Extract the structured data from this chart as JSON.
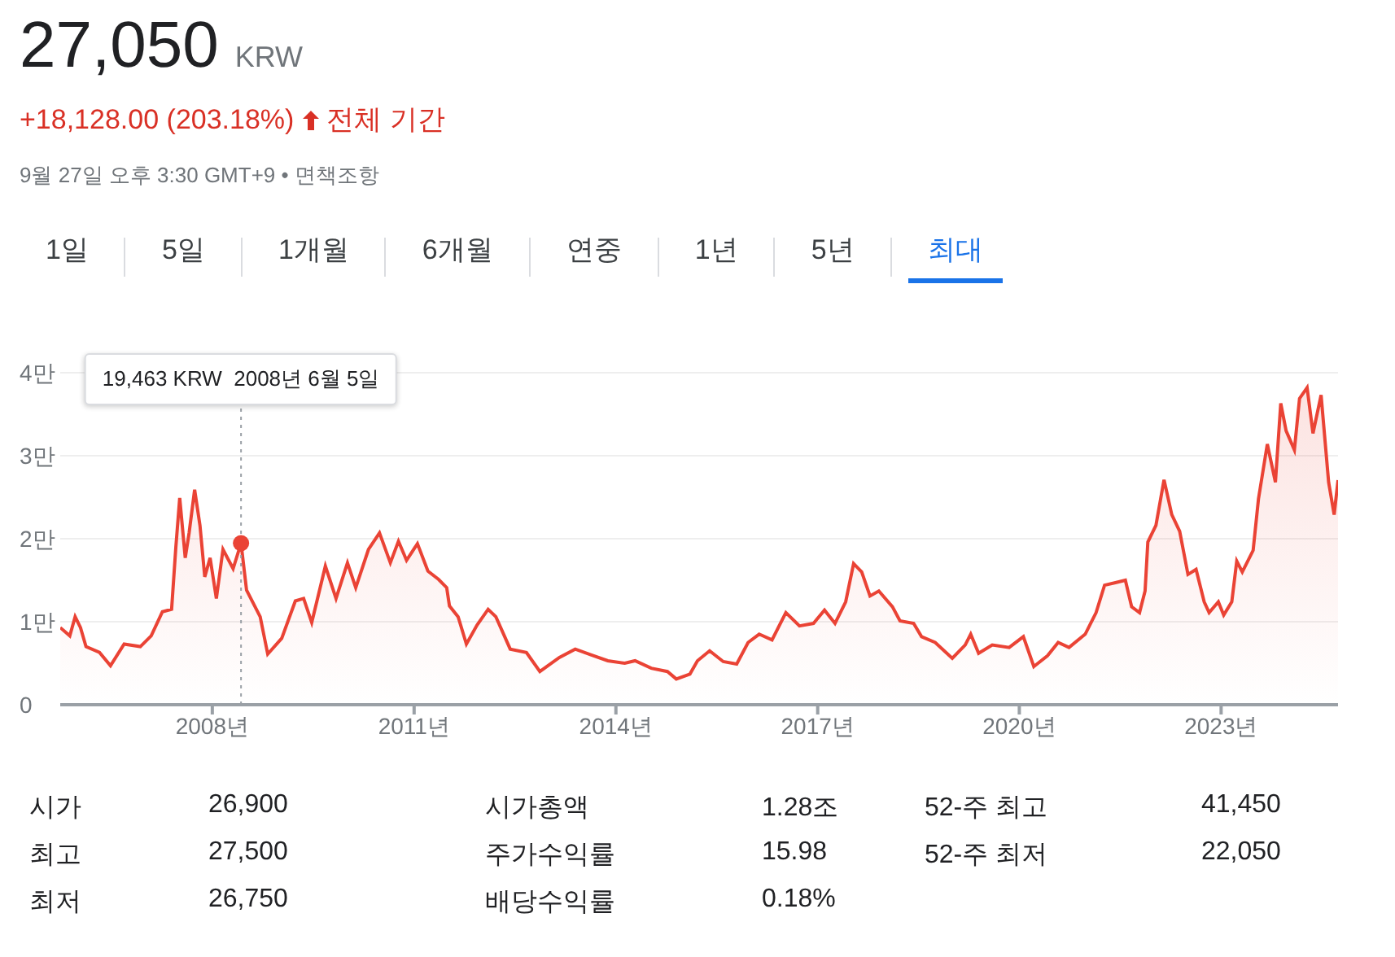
{
  "chart_data": {
    "type": "area",
    "title": "27,050",
    "subtitle": "KRW",
    "annotations": [
      "+18,128.00 (203.18%)",
      "전체 기간",
      "9월 27일 오후 3:30 GMT+9 • 면책조항",
      "1일",
      "5일",
      "1개월",
      "6개월",
      "연중",
      "1년",
      "5년",
      "최대",
      "시가",
      "26,900",
      "최고",
      "27,500",
      "최저",
      "26,750",
      "시가총액",
      "1.28조",
      "주가수익률",
      "15.98",
      "배당수익률",
      "0.18%",
      "52-주 최고",
      "41,450",
      "52-주 최저",
      "22,050",
      "19,463 KRW  2008년 6월 5일"
    ],
    "x": [
      "2005-09-27",
      "2005-11-18",
      "2005-12-17",
      "2006-01-15",
      "2006-02-14",
      "2006-04-28",
      "2006-06-27",
      "2006-09-09",
      "2006-12-06",
      "2007-02-03",
      "2007-04-05",
      "2007-05-25",
      "2007-06-17",
      "2007-07-08",
      "2007-08-07",
      "2007-08-28",
      "2007-09-27",
      "2007-10-26",
      "2007-11-21",
      "2007-12-20",
      "2008-01-23",
      "2008-02-28",
      "2008-04-23",
      "2008-06-05",
      "2008-07-05",
      "2008-08-18",
      "2008-09-17",
      "2008-10-28",
      "2009-01-12",
      "2009-03-27",
      "2009-05-11",
      "2009-06-24",
      "2009-09-06",
      "2009-11-03",
      "2010-01-04",
      "2010-02-18",
      "2010-04-28",
      "2010-06-27",
      "2010-08-25",
      "2010-10-08",
      "2010-11-21",
      "2011-01-19",
      "2011-03-17",
      "2011-05-14",
      "2011-06-27",
      "2011-07-12",
      "2011-08-28",
      "2011-10-12",
      "2011-12-09",
      "2012-02-07",
      "2012-03-20",
      "2012-06-06",
      "2012-09-02",
      "2012-11-14",
      "2013-02-28",
      "2013-05-25",
      "2013-08-21",
      "2013-11-18",
      "2014-02-18",
      "2014-04-15",
      "2014-07-12",
      "2014-10-08",
      "2014-11-25",
      "2015-02-07",
      "2015-03-20",
      "2015-05-25",
      "2015-08-07",
      "2015-10-19",
      "2015-12-20",
      "2016-02-18",
      "2016-04-28",
      "2016-07-12",
      "2016-09-24",
      "2016-12-09",
      "2017-02-07",
      "2017-04-05",
      "2017-06-02",
      "2017-07-15",
      "2017-08-28",
      "2017-10-12",
      "2017-11-29",
      "2018-02-11",
      "2018-03-24",
      "2018-06-06",
      "2018-07-19",
      "2018-10-01",
      "2019-01-02",
      "2019-03-13",
      "2019-04-12",
      "2019-05-25",
      "2019-08-07",
      "2019-11-07",
      "2020-01-23",
      "2020-03-20",
      "2020-06-02",
      "2020-07-30",
      "2020-09-27",
      "2020-12-24",
      "2021-02-21",
      "2021-04-08",
      "2021-06-06",
      "2021-07-30",
      "2021-09-02",
      "2021-10-15",
      "2021-11-14",
      "2021-11-29",
      "2022-01-12",
      "2022-02-25",
      "2022-04-08",
      "2022-05-21",
      "2022-07-05",
      "2022-08-18",
      "2022-10-01",
      "2022-10-28",
      "2022-12-17",
      "2023-01-15",
      "2023-02-28",
      "2023-03-27",
      "2023-04-26",
      "2023-06-24",
      "2023-07-23",
      "2023-09-09",
      "2023-10-23",
      "2023-11-21",
      "2023-12-20",
      "2024-02-03",
      "2024-03-02",
      "2024-04-12",
      "2024-05-14",
      "2024-06-27",
      "2024-08-07",
      "2024-09-06",
      "2024-09-27"
    ],
    "series": [
      {
        "color": "#ea4335",
        "values": [
          0.93,
          0.83,
          1.06,
          0.93,
          0.7,
          0.63,
          0.47,
          0.73,
          0.7,
          0.83,
          1.12,
          1.15,
          1.9,
          2.49,
          1.77,
          2.07,
          2.59,
          2.16,
          1.54,
          1.77,
          1.28,
          1.87,
          1.64,
          1.9463,
          1.38,
          1.19,
          1.06,
          0.61,
          0.8,
          1.25,
          1.28,
          0.99,
          1.67,
          1.28,
          1.71,
          1.41,
          1.87,
          2.07,
          1.71,
          1.97,
          1.74,
          1.94,
          1.61,
          1.51,
          1.41,
          1.19,
          1.06,
          0.73,
          0.96,
          1.15,
          1.06,
          0.67,
          0.63,
          0.4,
          0.57,
          0.67,
          0.6,
          0.53,
          0.5,
          0.53,
          0.44,
          0.4,
          0.31,
          0.37,
          0.53,
          0.65,
          0.52,
          0.49,
          0.75,
          0.85,
          0.78,
          1.11,
          0.95,
          0.98,
          1.14,
          0.98,
          1.24,
          1.7,
          1.6,
          1.31,
          1.37,
          1.18,
          1.01,
          0.98,
          0.82,
          0.75,
          0.56,
          0.72,
          0.85,
          0.62,
          0.72,
          0.69,
          0.82,
          0.46,
          0.59,
          0.75,
          0.69,
          0.85,
          1.11,
          1.44,
          1.47,
          1.5,
          1.18,
          1.11,
          1.37,
          1.96,
          2.16,
          2.71,
          2.29,
          2.09,
          1.57,
          1.63,
          1.24,
          1.11,
          1.24,
          1.08,
          1.24,
          1.73,
          1.6,
          1.86,
          2.48,
          3.14,
          2.68,
          3.63,
          3.3,
          3.07,
          3.69,
          3.82,
          3.27,
          3.73,
          2.68,
          2.29,
          2.705
        ]
      }
    ],
    "xlim": [
      "2005-09-27",
      "2024-09-27"
    ],
    "xticks": [
      {
        "value": "2008",
        "label": "2008년"
      },
      {
        "value": "2011",
        "label": "2011년"
      },
      {
        "value": "2014",
        "label": "2014년"
      },
      {
        "value": "2017",
        "label": "2017년"
      },
      {
        "value": "2020",
        "label": "2020년"
      },
      {
        "value": "2023",
        "label": "2023년"
      }
    ],
    "ylim": [
      0,
      4
    ],
    "yticks": [
      0,
      {
        "value": 1,
        "label": "1만"
      },
      {
        "value": 2,
        "label": "2만"
      },
      {
        "value": 3,
        "label": "3만"
      },
      {
        "value": 4,
        "label": "4만"
      }
    ],
    "ref_lines": [
      {
        "axis": "x",
        "value": "2008-06-05",
        "color": "#9aa0a6",
        "line_style": "dotted"
      }
    ],
    "grid": "y"
  }
}
